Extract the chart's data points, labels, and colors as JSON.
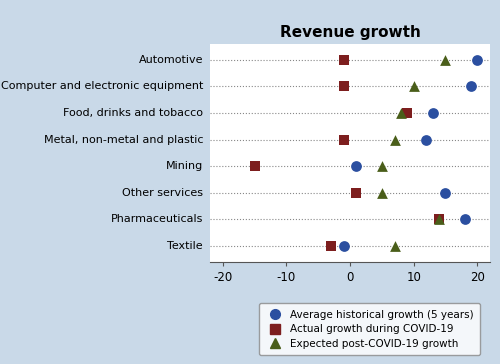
{
  "title": "Revenue growth",
  "categories": [
    "Automotive",
    "Computer and electronic equipment",
    "Food, drinks and tobacco",
    "Metal, non-metal and plastic",
    "Mining",
    "Other services",
    "Pharmaceuticals",
    "Textile"
  ],
  "avg_historical": [
    20,
    19,
    13,
    12,
    1,
    15,
    18,
    -1
  ],
  "actual_covid": [
    -1,
    -1,
    9,
    -1,
    -15,
    1,
    14,
    -3
  ],
  "expected_post": [
    15,
    10,
    8,
    7,
    5,
    5,
    14,
    7
  ],
  "circle_color": "#2B4FA0",
  "square_color": "#7D1E1E",
  "triangle_color": "#4A5E1A",
  "bg_outer": "#C9D9E8",
  "bg_inner": "#FFFFFF",
  "xlim": [
    -22,
    22
  ],
  "xticks": [
    -20,
    -10,
    0,
    10,
    20
  ],
  "legend_labels": [
    "Average historical growth (5 years)",
    "Actual growth during COVID-19",
    "Expected post-COVID-19 growth"
  ],
  "marker_size": 60
}
